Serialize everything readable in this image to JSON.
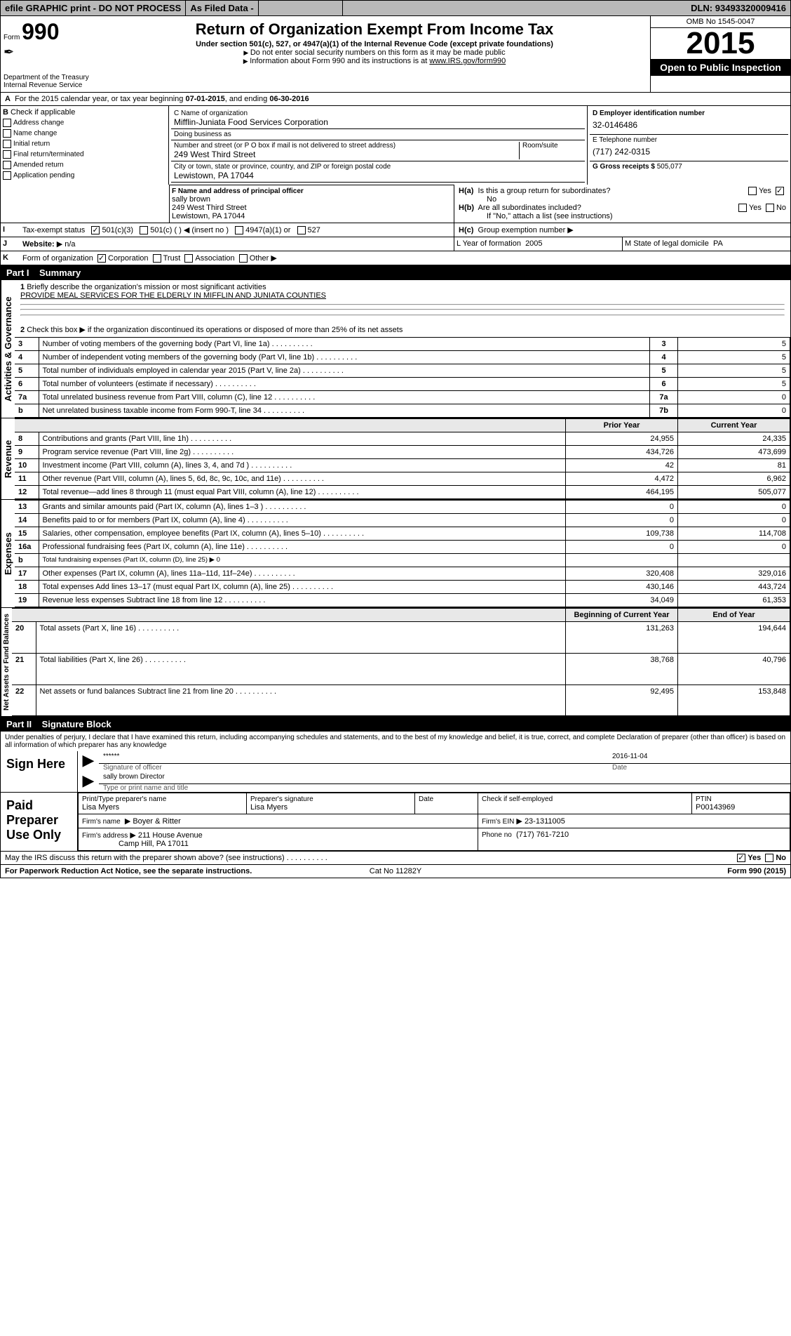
{
  "topbar": {
    "efile": "efile GRAPHIC print - DO NOT PROCESS",
    "asfiled": "As Filed Data -",
    "dln_label": "DLN:",
    "dln": "93493320009416"
  },
  "header": {
    "form_label": "Form",
    "form_num": "990",
    "dept": "Department of the Treasury",
    "irs": "Internal Revenue Service",
    "title": "Return of Organization Exempt From Income Tax",
    "sub1": "Under section 501(c), 527, or 4947(a)(1) of the Internal Revenue Code (except private foundations)",
    "sub2_a": "Do not enter social security numbers on this form as it may be made public",
    "sub2_b": "Information about Form 990 and its instructions is at",
    "sub2_link": "www.IRS.gov/form990",
    "omb": "OMB No 1545-0047",
    "year": "2015",
    "inspect": "Open to Public Inspection"
  },
  "rowA": {
    "text_a": "For the 2015 calendar year, or tax year beginning",
    "begin": "07-01-2015",
    "text_b": ", and ending",
    "end": "06-30-2016"
  },
  "B": {
    "title": "Check if applicable",
    "opts": [
      "Address change",
      "Name change",
      "Initial return",
      "Final return/terminated",
      "Amended return",
      "Application pending"
    ]
  },
  "C": {
    "name_label": "C Name of organization",
    "name": "Mifflin-Juniata Food Services Corporation",
    "dba_label": "Doing business as",
    "dba": "",
    "street_label": "Number and street (or P O box if mail is not delivered to street address)",
    "street": "249 West Third Street",
    "room_label": "Room/suite",
    "room": "",
    "city_label": "City or town, state or province, country, and ZIP or foreign postal code",
    "city": "Lewistown, PA  17044"
  },
  "D": {
    "label": "D Employer identification number",
    "val": "32-0146486"
  },
  "E": {
    "label": "E Telephone number",
    "val": "(717) 242-0315"
  },
  "G": {
    "label": "G Gross receipts $",
    "val": "505,077"
  },
  "F": {
    "label": "F  Name and address of principal officer",
    "name": "sally brown",
    "addr1": "249 West Third Street",
    "addr2": "Lewistown, PA  17044"
  },
  "H": {
    "a": "Is this a group return for subordinates?",
    "a_ans": "No",
    "b": "Are all subordinates included?",
    "b_note": "If \"No,\" attach a list  (see instructions)",
    "c": "Group exemption number"
  },
  "I": {
    "label": "Tax-exempt status",
    "opts": [
      "501(c)(3)",
      "501(c) (  ) ◀ (insert no )",
      "4947(a)(1) or",
      "527"
    ]
  },
  "J": {
    "label": "Website:",
    "val": "n/a"
  },
  "K": {
    "label": "Form of organization",
    "opts": [
      "Corporation",
      "Trust",
      "Association",
      "Other"
    ]
  },
  "L": {
    "label": "L Year of formation",
    "val": "2005"
  },
  "M": {
    "label": "M State of legal domicile",
    "val": "PA"
  },
  "partI": {
    "title": "Part I",
    "name": "Summary",
    "q1": "Briefly describe the organization's mission or most significant activities",
    "q1_ans": "PROVIDE MEAL SERVICES FOR THE ELDERLY IN MIFFLIN AND JUNIATA COUNTIES",
    "q2": "Check this box ▶    if the organization discontinued its operations or disposed of more than 25% of its net assets"
  },
  "gov_rows": [
    {
      "n": "3",
      "t": "Number of voting members of the governing body (Part VI, line 1a)",
      "k": "3",
      "v": "5"
    },
    {
      "n": "4",
      "t": "Number of independent voting members of the governing body (Part VI, line 1b)",
      "k": "4",
      "v": "5"
    },
    {
      "n": "5",
      "t": "Total number of individuals employed in calendar year 2015 (Part V, line 2a)",
      "k": "5",
      "v": "5"
    },
    {
      "n": "6",
      "t": "Total number of volunteers (estimate if necessary)",
      "k": "6",
      "v": "5"
    },
    {
      "n": "7a",
      "t": "Total unrelated business revenue from Part VIII, column (C), line 12",
      "k": "7a",
      "v": "0"
    },
    {
      "n": "b",
      "t": "Net unrelated business taxable income from Form 990-T, line 34",
      "k": "7b",
      "v": "0"
    }
  ],
  "two_col_header": {
    "py": "Prior Year",
    "cy": "Current Year"
  },
  "rev_rows": [
    {
      "n": "8",
      "t": "Contributions and grants (Part VIII, line 1h)",
      "py": "24,955",
      "cy": "24,335"
    },
    {
      "n": "9",
      "t": "Program service revenue (Part VIII, line 2g)",
      "py": "434,726",
      "cy": "473,699"
    },
    {
      "n": "10",
      "t": "Investment income (Part VIII, column (A), lines 3, 4, and 7d )",
      "py": "42",
      "cy": "81"
    },
    {
      "n": "11",
      "t": "Other revenue (Part VIII, column (A), lines 5, 6d, 8c, 9c, 10c, and 11e)",
      "py": "4,472",
      "cy": "6,962"
    },
    {
      "n": "12",
      "t": "Total revenue—add lines 8 through 11 (must equal Part VIII, column (A), line 12)",
      "py": "464,195",
      "cy": "505,077"
    }
  ],
  "exp_rows": [
    {
      "n": "13",
      "t": "Grants and similar amounts paid (Part IX, column (A), lines 1–3 )",
      "py": "0",
      "cy": "0"
    },
    {
      "n": "14",
      "t": "Benefits paid to or for members (Part IX, column (A), line 4)",
      "py": "0",
      "cy": "0"
    },
    {
      "n": "15",
      "t": "Salaries, other compensation, employee benefits (Part IX, column (A), lines 5–10)",
      "py": "109,738",
      "cy": "114,708"
    },
    {
      "n": "16a",
      "t": "Professional fundraising fees (Part IX, column (A), line 11e)",
      "py": "0",
      "cy": "0"
    },
    {
      "n": "b",
      "t": "Total fundraising expenses (Part IX, column (D), line 25) ▶ 0",
      "py": "",
      "cy": "",
      "shade": true
    },
    {
      "n": "17",
      "t": "Other expenses (Part IX, column (A), lines 11a–11d, 11f–24e)",
      "py": "320,408",
      "cy": "329,016"
    },
    {
      "n": "18",
      "t": "Total expenses  Add lines 13–17 (must equal Part IX, column (A), line 25)",
      "py": "430,146",
      "cy": "443,724"
    },
    {
      "n": "19",
      "t": "Revenue less expenses  Subtract line 18 from line 12",
      "py": "34,049",
      "cy": "61,353"
    }
  ],
  "na_header": {
    "py": "Beginning of Current Year",
    "cy": "End of Year"
  },
  "na_rows": [
    {
      "n": "20",
      "t": "Total assets (Part X, line 16)",
      "py": "131,263",
      "cy": "194,644"
    },
    {
      "n": "21",
      "t": "Total liabilities (Part X, line 26)",
      "py": "38,768",
      "cy": "40,796"
    },
    {
      "n": "22",
      "t": "Net assets or fund balances  Subtract line 21 from line 20",
      "py": "92,495",
      "cy": "153,848"
    }
  ],
  "partII": {
    "title": "Part II",
    "name": "Signature Block",
    "perjury": "Under penalties of perjury, I declare that I have examined this return, including accompanying schedules and statements, and to the best of my knowledge and belief, it is true, correct, and complete  Declaration of preparer (other than officer) is based on all information of which preparer has any knowledge"
  },
  "sign": {
    "side": "Sign Here",
    "sig_masked": "******",
    "sig_label": "Signature of officer",
    "date": "2016-11-04",
    "date_label": "Date",
    "name": "sally brown Director",
    "name_label": "Type or print name and title"
  },
  "paid": {
    "side": "Paid Preparer Use Only",
    "prep_name_label": "Print/Type preparer's name",
    "prep_name": "Lisa Myers",
    "prep_sig_label": "Preparer's signature",
    "prep_sig": "Lisa Myers",
    "date_label": "Date",
    "date": "",
    "check_label": "Check      if self-employed",
    "ptin_label": "PTIN",
    "ptin": "P00143969",
    "firm_name_label": "Firm's name",
    "firm_name": "Boyer & Ritter",
    "firm_addr_label": "Firm's address",
    "firm_addr1": "211 House Avenue",
    "firm_addr2": "Camp Hill, PA  17011",
    "ein_label": "Firm's EIN",
    "ein": "23-1311005",
    "phone_label": "Phone no",
    "phone": "(717) 761-7210"
  },
  "last": {
    "q": "May the IRS discuss this return with the preparer shown above? (see instructions)",
    "yes": "Yes",
    "no": "No"
  },
  "footer": {
    "l": "For Paperwork Reduction Act Notice, see the separate instructions.",
    "m": "Cat No  11282Y",
    "r": "Form 990 (2015)"
  },
  "side_labels": {
    "gov": "Activities & Governance",
    "rev": "Revenue",
    "exp": "Expenses",
    "na": "Net Assets or Fund Balances"
  }
}
